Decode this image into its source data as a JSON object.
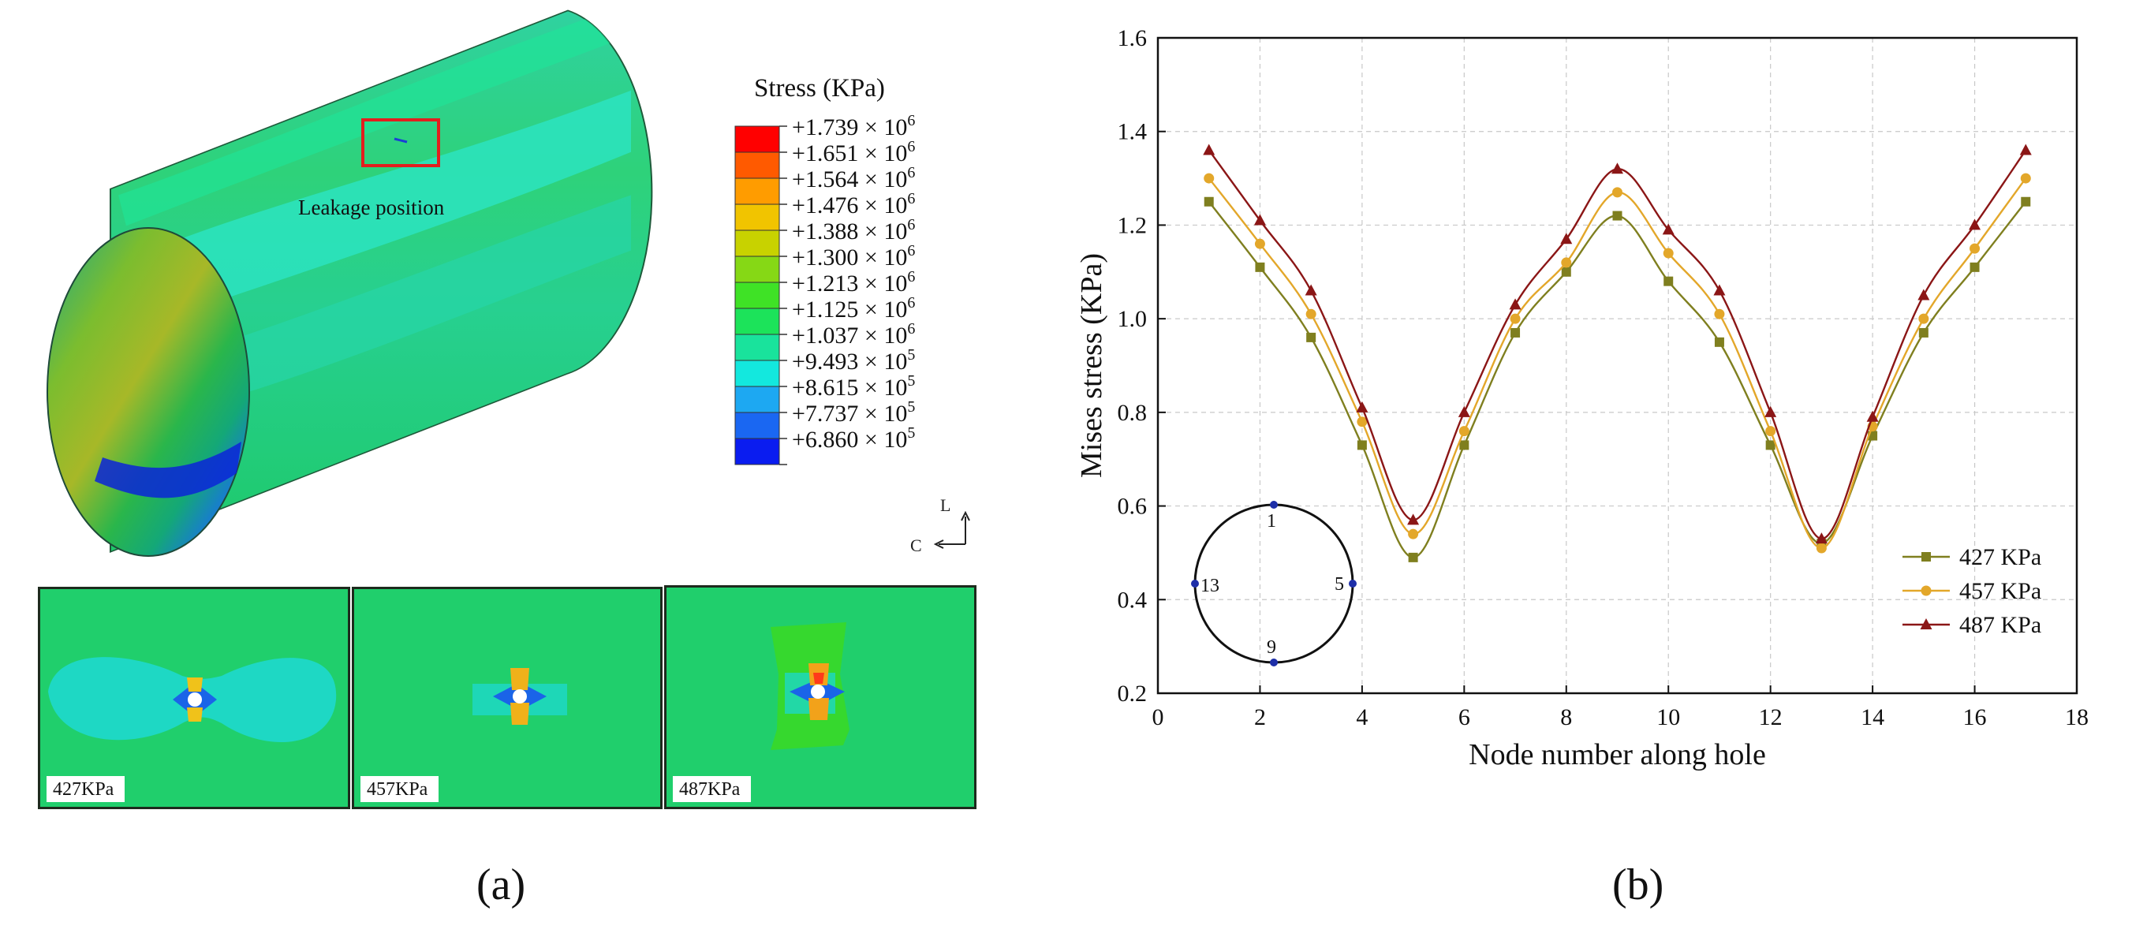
{
  "panel_a": {
    "sub_label": "(a)",
    "legend": {
      "title": "Stress (KPa)",
      "colors": [
        "#ff0000",
        "#ff5a00",
        "#ff9c00",
        "#f1c400",
        "#c8d200",
        "#86d815",
        "#3fe226",
        "#1ce35a",
        "#19e39c",
        "#13e8de",
        "#1da8f2",
        "#1a67f2",
        "#0a1cf0"
      ],
      "entries": [
        {
          "mantissa": "+1.739",
          "exponent": "6"
        },
        {
          "mantissa": "+1.651",
          "exponent": "6"
        },
        {
          "mantissa": "+1.564",
          "exponent": "6"
        },
        {
          "mantissa": "+1.476",
          "exponent": "6"
        },
        {
          "mantissa": "+1.388",
          "exponent": "6"
        },
        {
          "mantissa": "+1.300",
          "exponent": "6"
        },
        {
          "mantissa": "+1.213",
          "exponent": "6"
        },
        {
          "mantissa": "+1.125",
          "exponent": "6"
        },
        {
          "mantissa": "+1.037",
          "exponent": "6"
        },
        {
          "mantissa": "+9.493",
          "exponent": "5"
        },
        {
          "mantissa": "+8.615",
          "exponent": "5"
        },
        {
          "mantissa": "+7.737",
          "exponent": "5"
        },
        {
          "mantissa": "+6.860",
          "exponent": "5"
        }
      ],
      "times": "× 10"
    },
    "leakage_label": "Leakage position",
    "axis_l": "L",
    "axis_c": "C",
    "insets": [
      {
        "label": "427KPa"
      },
      {
        "label": "457KPa"
      },
      {
        "label": "487KPa"
      }
    ]
  },
  "panel_b": {
    "sub_label": "(b)",
    "inset_nodes": [
      "1",
      "5",
      "9",
      "13"
    ]
  },
  "chart_data": {
    "type": "line",
    "title": "",
    "xlabel": "Node number along hole",
    "ylabel": "Mises stress (KPa)",
    "xlim": [
      0,
      18
    ],
    "ylim": [
      0.2,
      1.6
    ],
    "xticks": [
      0,
      2,
      4,
      6,
      8,
      10,
      12,
      14,
      16,
      18
    ],
    "yticks": [
      0.2,
      0.4,
      0.6,
      0.8,
      1.0,
      1.2,
      1.4,
      1.6
    ],
    "grid": true,
    "legend_position": "bottom-right",
    "x": [
      1,
      2,
      3,
      4,
      5,
      6,
      7,
      8,
      9,
      10,
      11,
      12,
      13,
      14,
      15,
      16,
      17
    ],
    "series": [
      {
        "name": "427 KPa",
        "color": "#7f7f1f",
        "marker": "square",
        "values": [
          1.25,
          1.11,
          0.96,
          0.73,
          0.49,
          0.73,
          0.97,
          1.1,
          1.22,
          1.08,
          0.95,
          0.73,
          0.52,
          0.75,
          0.97,
          1.11,
          1.25
        ]
      },
      {
        "name": "457 KPa",
        "color": "#e3a72a",
        "marker": "circle",
        "values": [
          1.3,
          1.16,
          1.01,
          0.78,
          0.54,
          0.76,
          1.0,
          1.12,
          1.27,
          1.14,
          1.01,
          0.76,
          0.51,
          0.77,
          1.0,
          1.15,
          1.3
        ]
      },
      {
        "name": "487 KPa",
        "color": "#8b1616",
        "marker": "triangle",
        "values": [
          1.36,
          1.21,
          1.06,
          0.81,
          0.57,
          0.8,
          1.03,
          1.17,
          1.32,
          1.19,
          1.06,
          0.8,
          0.53,
          0.79,
          1.05,
          1.2,
          1.36
        ]
      }
    ]
  }
}
